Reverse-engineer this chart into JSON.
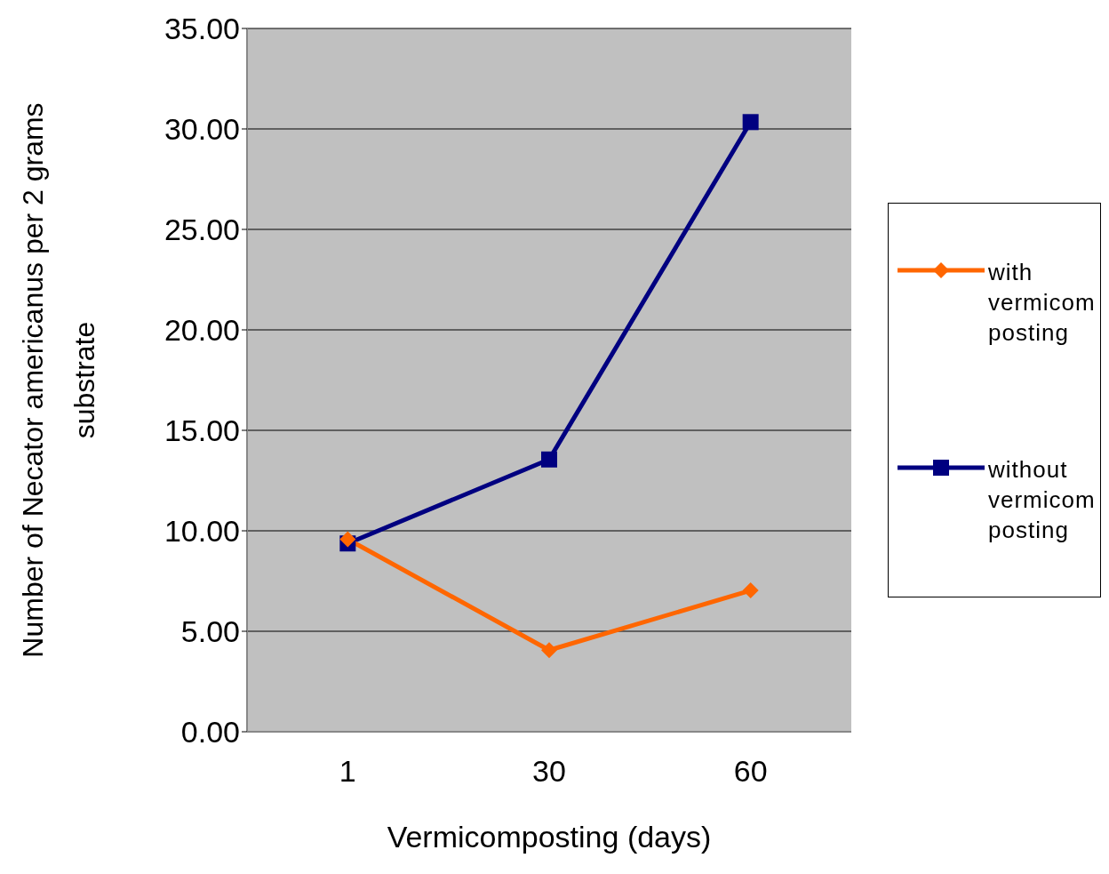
{
  "chart_data": {
    "type": "line",
    "xlabel": "Vermicomposting (days)",
    "ylabel": "Number of Necator americanus  per 2 grams substrate",
    "categories": [
      "1",
      "30",
      "60"
    ],
    "series": [
      {
        "name": "with vermicomposting",
        "color": "#ff6600",
        "marker": "diamond",
        "values": [
          9.58,
          4.06,
          7.03
        ]
      },
      {
        "name": "without vermicomposting",
        "color": "#000080",
        "marker": "square",
        "values": [
          9.37,
          13.55,
          30.34
        ]
      }
    ],
    "ylim": [
      0,
      35
    ],
    "yticks": [
      {
        "value": 0,
        "label": "0.00"
      },
      {
        "value": 5,
        "label": "5.00"
      },
      {
        "value": 10,
        "label": "10.00"
      },
      {
        "value": 15,
        "label": "15.00"
      },
      {
        "value": 20,
        "label": "20.00"
      },
      {
        "value": 25,
        "label": "25.00"
      },
      {
        "value": 30,
        "label": "30.00"
      },
      {
        "value": 35,
        "label": "35.00"
      }
    ],
    "grid": "y",
    "legend": "right"
  }
}
